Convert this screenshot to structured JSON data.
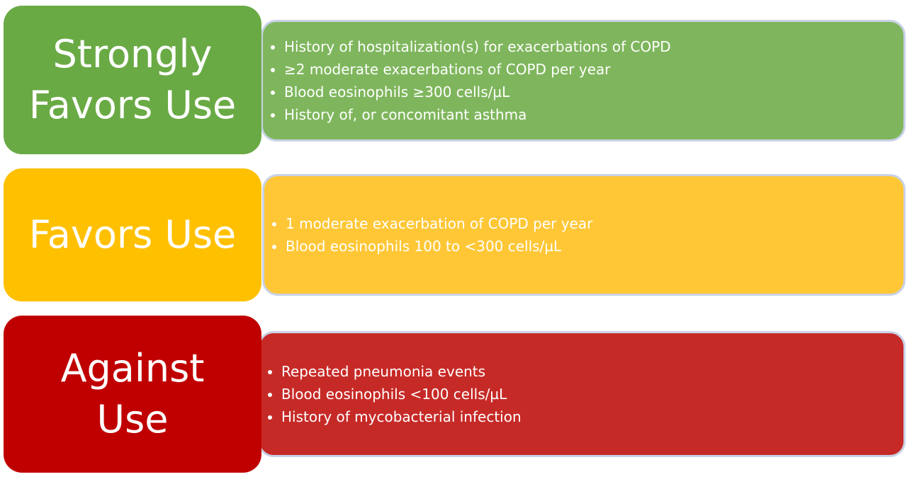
{
  "rows": [
    {
      "label": [
        "Strongly",
        "Favors Use"
      ],
      "items": [
        "History of hospitalization(s) for exacerbations of COPD",
        "≥2 moderate exacerbations of COPD per year",
        "Blood eosinophils ≥300 cells/µL",
        "History of, or concomitant asthma"
      ]
    },
    {
      "label": [
        "Favors Use"
      ],
      "items": [
        "1 moderate exacerbation of COPD per year",
        "Blood eosinophils 100 to <300 cells/µL"
      ]
    },
    {
      "label": [
        "Against",
        "Use"
      ],
      "items": [
        "Repeated pneumonia events",
        "Blood eosinophils <100 cells/µL",
        "History of mycobacterial infection"
      ]
    }
  ]
}
